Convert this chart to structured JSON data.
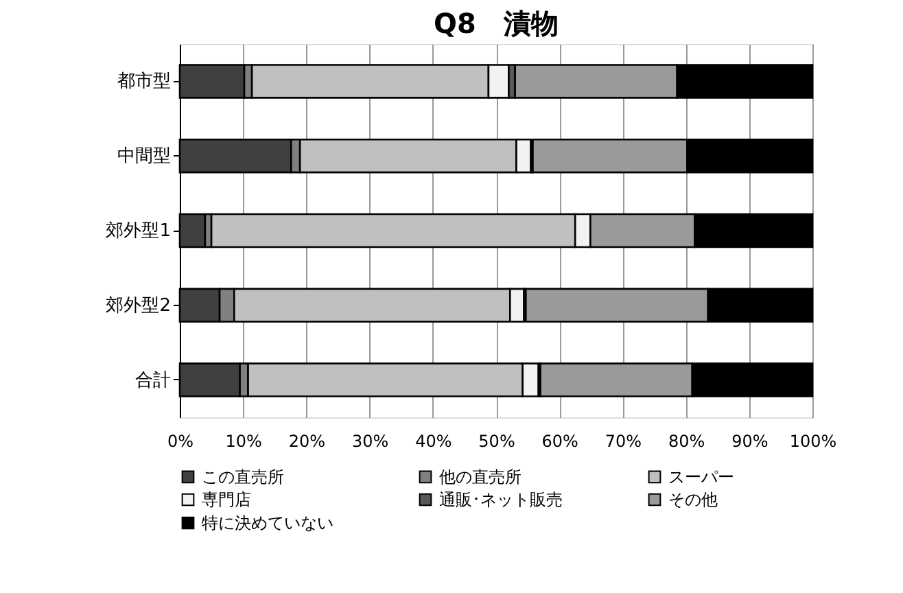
{
  "chart_data": {
    "type": "bar",
    "title": "Q8　漬物",
    "orientation": "horizontal",
    "stacked": true,
    "categories": [
      "都市型",
      "中間型",
      "郊外型1",
      "郊外型2",
      "合計"
    ],
    "series": [
      {
        "name": "この直売所",
        "color": "#404040",
        "values": [
          10.2,
          17.6,
          4.0,
          6.3,
          9.5
        ]
      },
      {
        "name": "他の直売所",
        "color": "#808080",
        "values": [
          1.2,
          1.4,
          1.0,
          2.3,
          1.3
        ]
      },
      {
        "name": "スーパー",
        "color": "#c0c0c0",
        "values": [
          37.4,
          34.2,
          57.5,
          43.6,
          43.4
        ]
      },
      {
        "name": "専門店",
        "color": "#f2f2f2",
        "values": [
          3.2,
          2.3,
          2.4,
          2.2,
          2.5
        ]
      },
      {
        "name": "通販･ネット販売",
        "color": "#595959",
        "values": [
          1.0,
          0.3,
          0.0,
          0.3,
          0.3
        ]
      },
      {
        "name": "その他",
        "color": "#9a9a9a",
        "values": [
          25.6,
          24.4,
          16.5,
          28.8,
          24.0
        ]
      },
      {
        "name": "特に決めていない",
        "color": "#000000",
        "values": [
          21.4,
          19.8,
          18.6,
          16.5,
          19.0
        ]
      }
    ],
    "xlim": [
      0,
      100
    ],
    "xticks": [
      {
        "value": 0,
        "label": "0%"
      },
      {
        "value": 10,
        "label": "10%"
      },
      {
        "value": 20,
        "label": "20%"
      },
      {
        "value": 30,
        "label": "30%"
      },
      {
        "value": 40,
        "label": "40%"
      },
      {
        "value": 50,
        "label": "50%"
      },
      {
        "value": 60,
        "label": "60%"
      },
      {
        "value": 70,
        "label": "70%"
      },
      {
        "value": 80,
        "label": "80%"
      },
      {
        "value": 90,
        "label": "90%"
      },
      {
        "value": 100,
        "label": "100%"
      }
    ],
    "grid": "x",
    "legend": "bottom"
  }
}
